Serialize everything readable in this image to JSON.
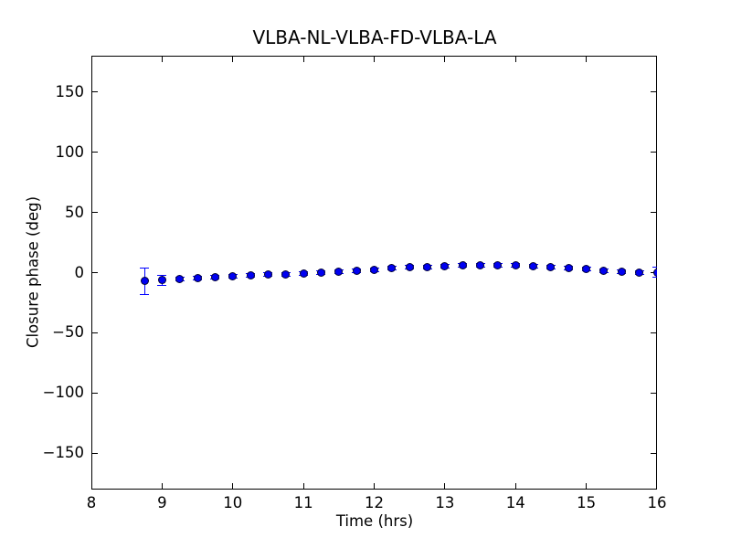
{
  "figure": {
    "background_color": "#ffffff",
    "axes_edge_color": "#000000"
  },
  "chart_data": {
    "type": "scatter",
    "title": "VLBA-NL-VLBA-FD-VLBA-LA",
    "xlabel": "Time (hrs)",
    "ylabel": "Closure phase (deg)",
    "xlim": [
      8,
      16
    ],
    "ylim": [
      -180,
      180
    ],
    "xticks": [
      8,
      9,
      10,
      11,
      12,
      13,
      14,
      15,
      16
    ],
    "yticks": [
      -150,
      -100,
      -50,
      0,
      50,
      100,
      150
    ],
    "grid": false,
    "legend_position": "none",
    "marker_style": "filled-circle-with-error-bars",
    "marker_color": "#0000f2",
    "errorbar_color": "#0000ff",
    "series": [
      {
        "name": "closure phase",
        "x": [
          8.75,
          9.0,
          9.25,
          9.5,
          9.75,
          10.0,
          10.25,
          10.5,
          10.75,
          11.0,
          11.25,
          11.5,
          11.75,
          12.0,
          12.25,
          12.5,
          12.75,
          13.0,
          13.25,
          13.5,
          13.75,
          14.0,
          14.25,
          14.5,
          14.75,
          15.0,
          15.25,
          15.5,
          15.75,
          16.0
        ],
        "y": [
          -7.0,
          -6.3,
          -5.5,
          -4.6,
          -3.7,
          -2.9,
          -2.2,
          -1.7,
          -1.2,
          -0.7,
          -0.1,
          0.7,
          1.6,
          2.6,
          3.5,
          4.3,
          4.9,
          5.4,
          5.8,
          6.0,
          6.0,
          5.8,
          5.3,
          4.6,
          3.7,
          2.7,
          1.7,
          0.8,
          0.2,
          0.3
        ],
        "yerr": [
          11.0,
          4.0,
          1.5,
          1.5,
          1.5,
          1.5,
          1.5,
          1.5,
          1.5,
          1.5,
          1.5,
          1.5,
          1.5,
          1.5,
          1.5,
          1.5,
          1.5,
          1.5,
          1.5,
          1.5,
          1.5,
          1.5,
          1.5,
          1.5,
          1.5,
          1.5,
          1.5,
          1.5,
          1.5,
          4.0
        ]
      }
    ]
  }
}
